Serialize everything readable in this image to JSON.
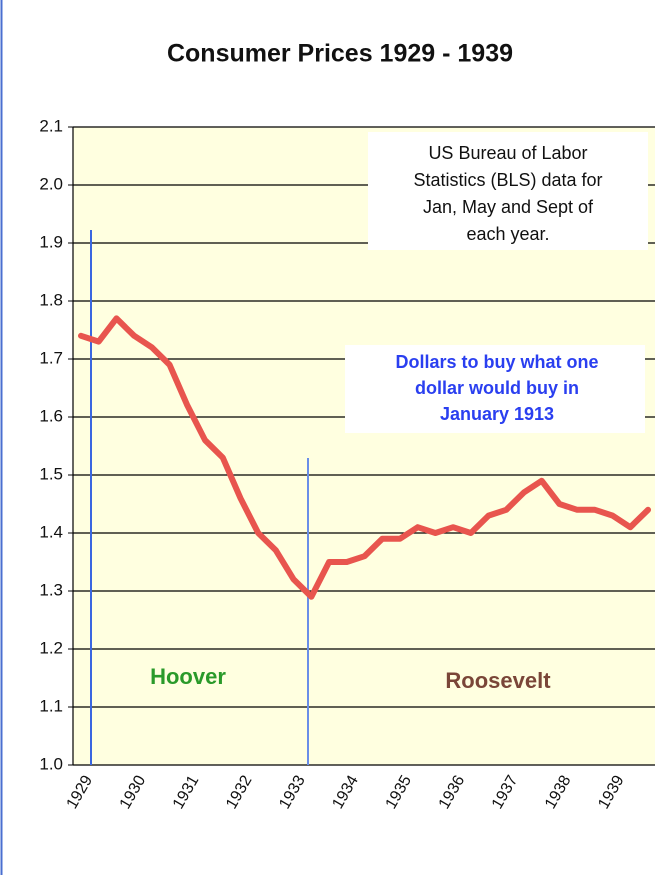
{
  "chart_data": {
    "type": "line",
    "title": "Consumer Prices 1929 - 1939",
    "categories": [
      "1929",
      null,
      null,
      "1930",
      null,
      null,
      "1931",
      null,
      null,
      "1932",
      null,
      null,
      "1933",
      null,
      null,
      "1934",
      null,
      null,
      "1935",
      null,
      null,
      "1936",
      null,
      null,
      "1937",
      null,
      null,
      "1938",
      null,
      null,
      "1939",
      null,
      null
    ],
    "series": [
      {
        "name": "Consumer Prices",
        "color": "#e8554e",
        "values": [
          1.74,
          1.73,
          1.77,
          1.74,
          1.72,
          1.69,
          1.62,
          1.56,
          1.53,
          1.46,
          1.4,
          1.37,
          1.32,
          1.29,
          1.35,
          1.35,
          1.36,
          1.39,
          1.39,
          1.41,
          1.4,
          1.41,
          1.4,
          1.43,
          1.44,
          1.47,
          1.49,
          1.45,
          1.44,
          1.44,
          1.43,
          1.41,
          1.44
        ]
      }
    ],
    "ylim": [
      1.0,
      2.1
    ],
    "yticks": [
      {
        "value": 1.0,
        "label": "1.0"
      },
      1.1,
      1.2,
      1.3,
      1.4,
      1.5,
      1.6,
      1.7,
      1.8,
      1.9,
      {
        "value": 2.0,
        "label": "2.0"
      },
      2.1
    ],
    "grid": true,
    "annotations": {
      "source_note": [
        "US Bureau of Labor",
        "Statistics (BLS) data for",
        "Jan, May and Sept of",
        "each year."
      ],
      "unit_note": [
        "Dollars to buy what one",
        "dollar would buy in",
        "January 1913"
      ],
      "hoover": "Hoover",
      "roosevelt": "Roosevelt"
    }
  }
}
